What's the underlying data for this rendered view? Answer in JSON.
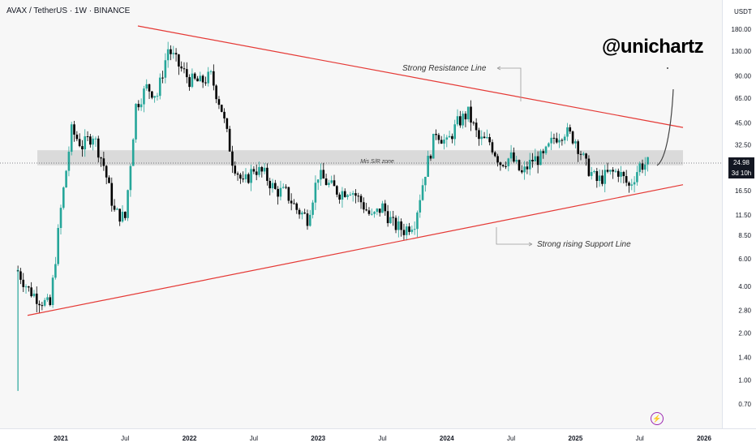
{
  "header": {
    "title": "AVAX / TetherUS · 1W · BINANCE",
    "watermark": "@unichartz"
  },
  "price_axis": {
    "currency": "USDT",
    "ticks": [
      "180.00",
      "130.00",
      "90.00",
      "65.00",
      "45.00",
      "32.50",
      "16.50",
      "11.50",
      "8.50",
      "6.00",
      "4.00",
      "2.80",
      "2.00",
      "1.40",
      "1.00",
      "0.70"
    ]
  },
  "price_tag": {
    "price": "24.98",
    "countdown": "3d 10h"
  },
  "time_axis": {
    "labels": [
      "2021",
      "Jul",
      "2022",
      "Jul",
      "2023",
      "Jul",
      "2024",
      "Jul",
      "2025",
      "Jul",
      "2026"
    ]
  },
  "annotations": {
    "resistance": "Strong Resistance Line",
    "support": "Strong rising Support Line",
    "zone": "Mis S/R zone"
  },
  "colors": {
    "up": "#26a69a",
    "down": "#000000",
    "trendline": "#e53935",
    "zone": "#d6d6d6"
  },
  "icons": {
    "flash": "flash-icon"
  },
  "chart_data": {
    "type": "candlestick",
    "title": "AVAX / TetherUS · 1W · BINANCE",
    "y_scale": "log",
    "ylim": [
      0.6,
      230
    ],
    "x_range": [
      "2020-09",
      "2026-02"
    ],
    "grid": false,
    "series": [
      {
        "name": "AVAX/USDT",
        "points": [
          [
            "2020-09",
            5.0
          ],
          [
            "2020-10",
            3.8
          ],
          [
            "2020-11",
            3.3
          ],
          [
            "2020-12",
            3.0
          ],
          [
            "2021-01",
            12.5
          ],
          [
            "2021-02",
            40
          ],
          [
            "2021-03",
            32
          ],
          [
            "2021-04",
            38
          ],
          [
            "2021-05",
            24
          ],
          [
            "2021-06",
            12
          ],
          [
            "2021-07",
            11
          ],
          [
            "2021-08",
            58
          ],
          [
            "2021-09",
            76
          ],
          [
            "2021-10",
            68
          ],
          [
            "2021-11",
            135
          ],
          [
            "2021-12",
            105
          ],
          [
            "2022-01",
            85
          ],
          [
            "2022-02",
            82
          ],
          [
            "2022-03",
            90
          ],
          [
            "2022-04",
            55
          ],
          [
            "2022-05",
            26
          ],
          [
            "2022-06",
            18
          ],
          [
            "2022-07",
            23
          ],
          [
            "2022-08",
            21
          ],
          [
            "2022-09",
            16.5
          ],
          [
            "2022-10",
            16
          ],
          [
            "2022-11",
            12.5
          ],
          [
            "2022-12",
            11
          ],
          [
            "2023-01",
            21
          ],
          [
            "2023-02",
            18
          ],
          [
            "2023-03",
            16
          ],
          [
            "2023-04",
            17
          ],
          [
            "2023-05",
            14
          ],
          [
            "2023-06",
            11
          ],
          [
            "2023-07",
            13
          ],
          [
            "2023-08",
            10
          ],
          [
            "2023-09",
            9.2
          ],
          [
            "2023-10",
            10.5
          ],
          [
            "2023-11",
            22
          ],
          [
            "2023-12",
            40
          ],
          [
            "2024-01",
            33
          ],
          [
            "2024-02",
            45
          ],
          [
            "2024-03",
            52
          ],
          [
            "2024-04",
            35
          ],
          [
            "2024-05",
            34
          ],
          [
            "2024-06",
            25
          ],
          [
            "2024-07",
            27
          ],
          [
            "2024-08",
            21
          ],
          [
            "2024-09",
            26
          ],
          [
            "2024-10",
            27
          ],
          [
            "2024-11",
            36
          ],
          [
            "2024-12",
            40
          ],
          [
            "2025-01",
            35
          ],
          [
            "2025-02",
            24
          ],
          [
            "2025-03",
            19
          ],
          [
            "2025-04",
            21
          ],
          [
            "2025-05",
            22
          ],
          [
            "2025-06",
            17.5
          ],
          [
            "2025-07",
            24
          ],
          [
            "2025-08",
            24.98
          ]
        ]
      }
    ],
    "resistance_line": {
      "from": [
        "2021-10",
        180
      ],
      "to": [
        "2025-11",
        42
      ]
    },
    "support_line": {
      "from": [
        "2020-09",
        2.6
      ],
      "to": [
        "2025-11",
        18
      ]
    },
    "sr_zone": [
      24,
      30
    ],
    "projection": {
      "from": [
        "2025-08",
        24.98
      ],
      "to": [
        "2025-09",
        70
      ]
    }
  }
}
